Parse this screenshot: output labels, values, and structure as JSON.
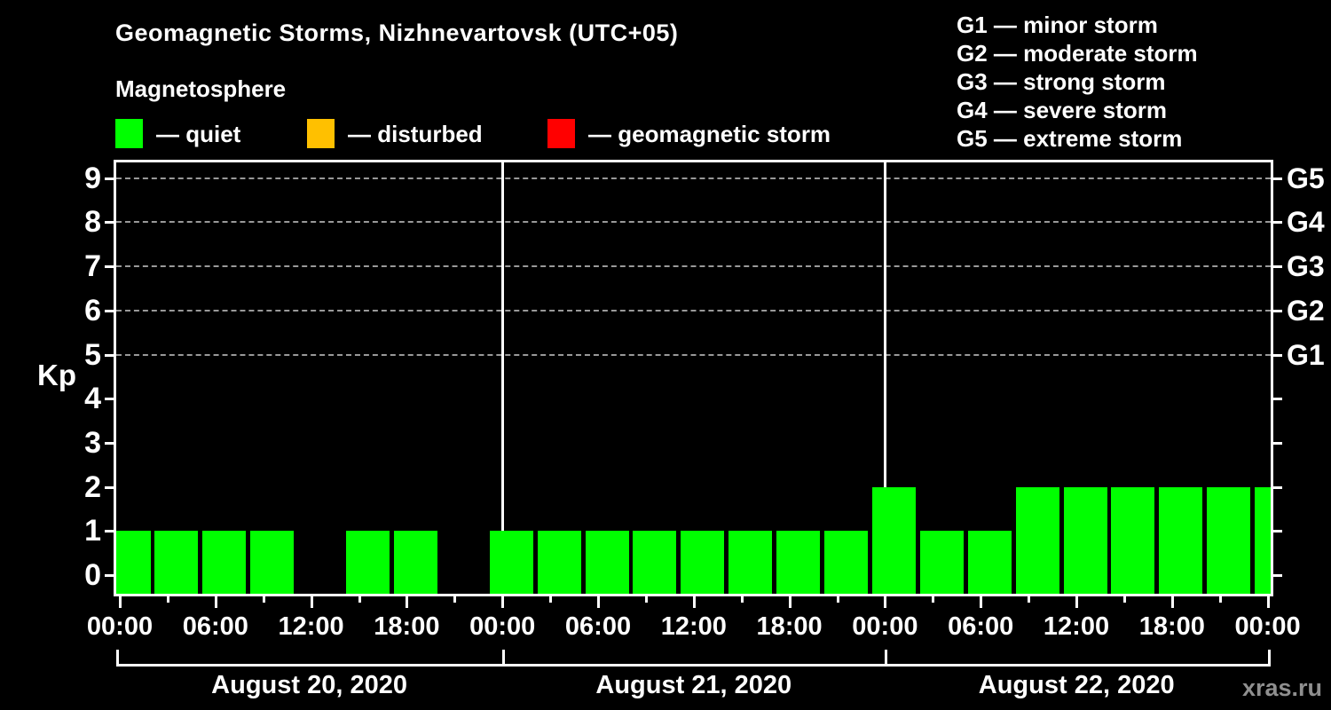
{
  "title": "Geomagnetic Storms, Nizhnevartovsk (UTC+05)",
  "subtitle": "Magnetosphere",
  "legend": {
    "items": [
      {
        "key": "quiet",
        "label": "— quiet",
        "color": "#00ff00"
      },
      {
        "key": "disturbed",
        "label": "— disturbed",
        "color": "#ffc000"
      },
      {
        "key": "storm",
        "label": "— geomagnetic storm",
        "color": "#ff0000"
      }
    ]
  },
  "storm_scale_legend": [
    "G1 — minor storm",
    "G2 — moderate storm",
    "G3 — strong storm",
    "G4 — severe storm",
    "G5 — extreme storm"
  ],
  "watermark": "xras.ru",
  "chart_data": {
    "type": "bar",
    "title": "Geomagnetic Storms, Nizhnevartovsk (UTC+05)",
    "ylabel": "Kp",
    "ylim": [
      0,
      9
    ],
    "y_ticks": [
      0,
      1,
      2,
      3,
      4,
      5,
      6,
      7,
      8,
      9
    ],
    "grid": "dashed horizontal lines at Kp 5,6,7,8,9",
    "interval_hours": 3,
    "x_tick_interval_hours": 3,
    "x_label_interval_hours": 6,
    "x_tick_labels": [
      "00:00",
      "06:00",
      "12:00",
      "18:00",
      "00:00",
      "06:00",
      "12:00",
      "18:00",
      "00:00",
      "06:00",
      "12:00",
      "18:00",
      "00:00"
    ],
    "right_axis": [
      {
        "kp": 5,
        "label": "G1"
      },
      {
        "kp": 6,
        "label": "G2"
      },
      {
        "kp": 7,
        "label": "G3"
      },
      {
        "kp": 8,
        "label": "G4"
      },
      {
        "kp": 9,
        "label": "G5"
      }
    ],
    "days": [
      {
        "date": "August 20, 2020",
        "kp": [
          1,
          1,
          1,
          1,
          0,
          1,
          1,
          0
        ]
      },
      {
        "date": "August 21, 2020",
        "kp": [
          1,
          1,
          1,
          1,
          1,
          1,
          1,
          1
        ]
      },
      {
        "date": "August 22, 2020",
        "kp": [
          2,
          1,
          1,
          2,
          2,
          2,
          2,
          2
        ]
      }
    ],
    "next_day_partial_kp": [
      2
    ],
    "bar_color": "#00ff00",
    "bar_activity_level": "quiet"
  }
}
